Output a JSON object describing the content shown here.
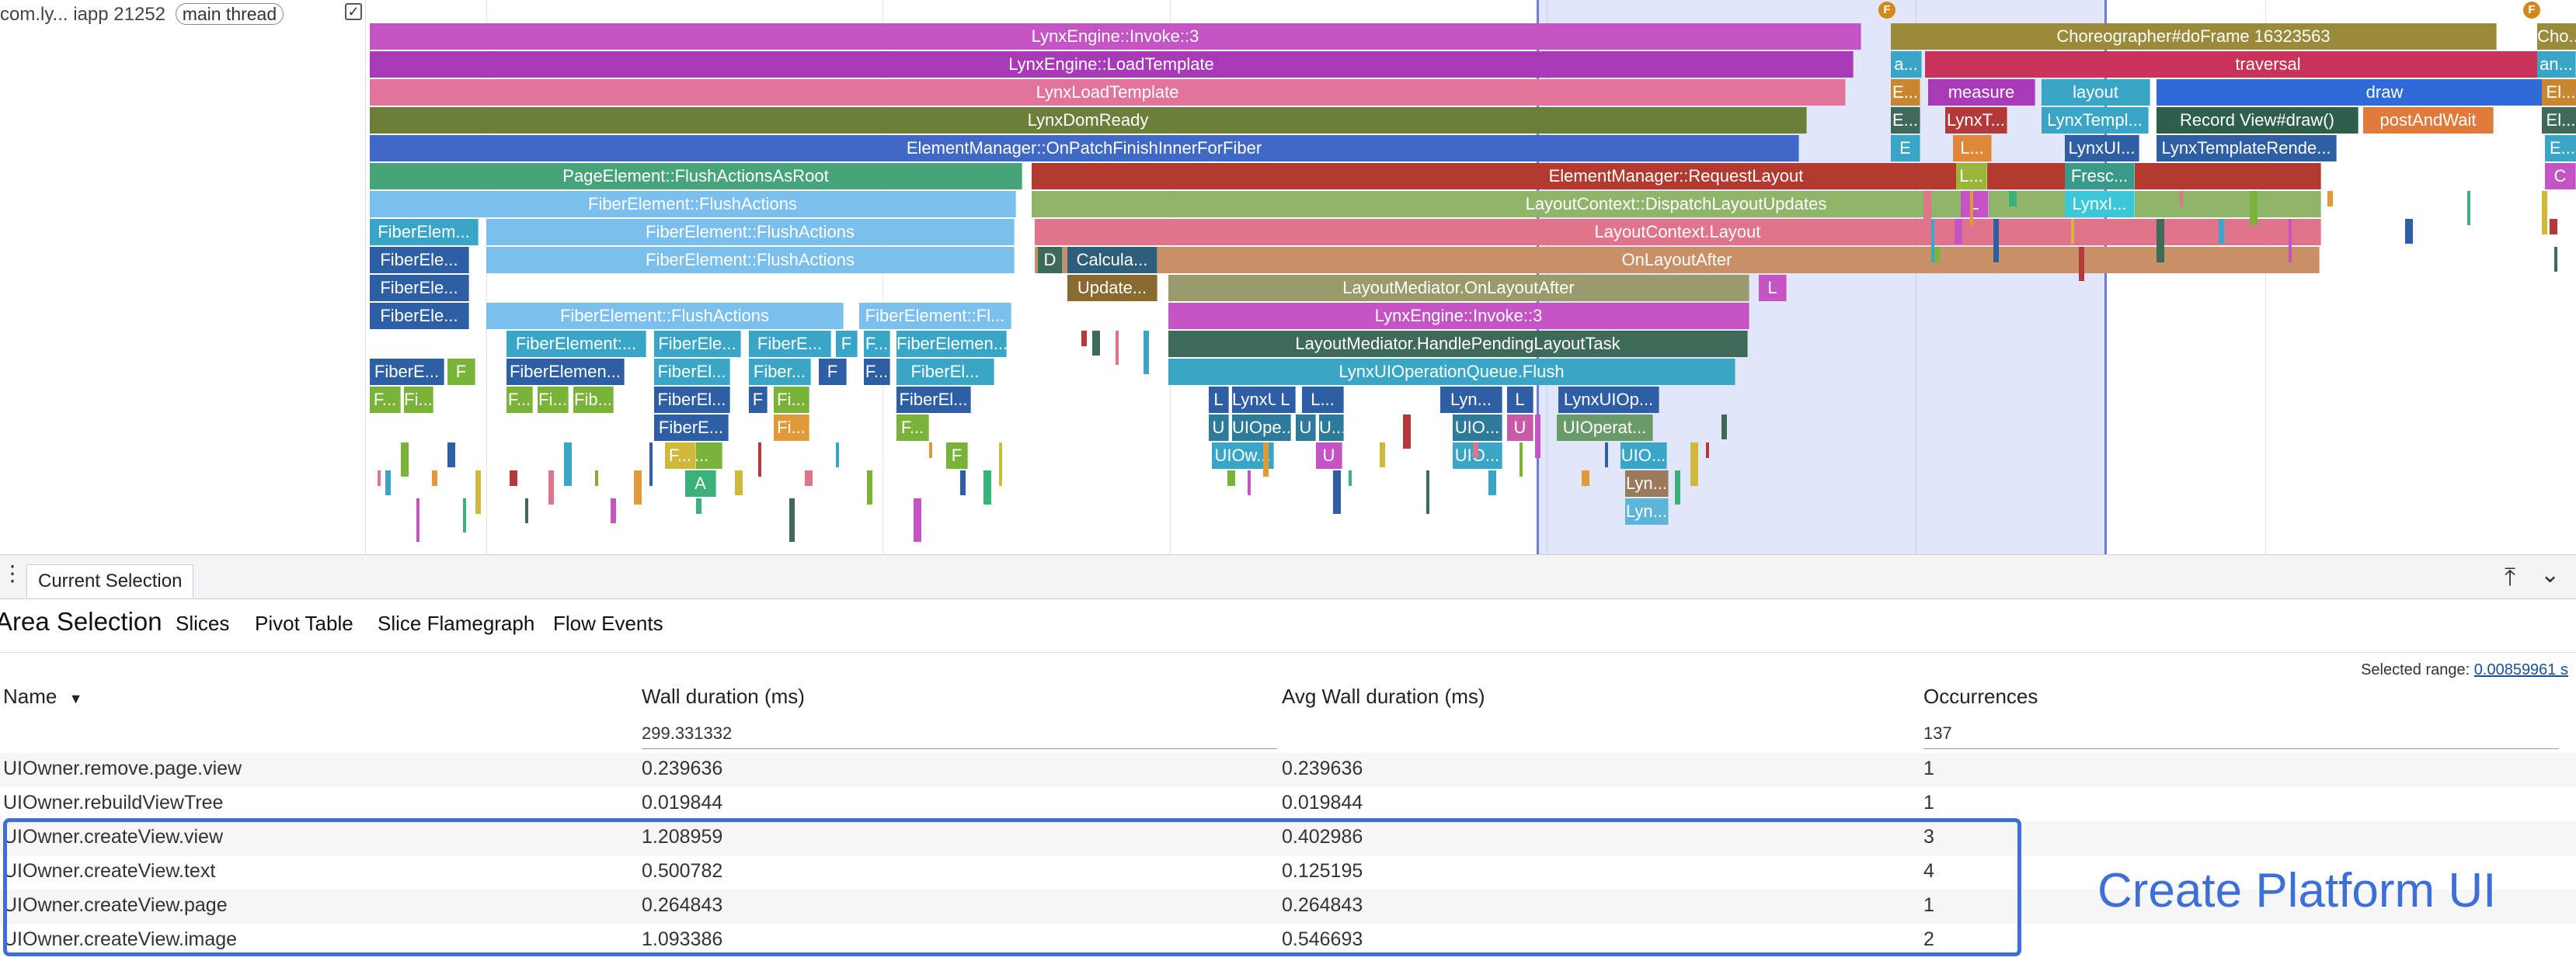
{
  "track": {
    "process_name": "com.ly... iapp 21252",
    "thread_pill": "main thread",
    "pin_icon": "checkbox-icon"
  },
  "flame": {
    "flag_label": "F",
    "slices": [
      {
        "label": "LynxEngine::Invoke::3",
        "color": "#c453c4"
      },
      {
        "label": "LynxEngine::LoadTemplate",
        "color": "#a93ab7"
      },
      {
        "label": "LynxLoadTemplate",
        "color": "#e0749c"
      },
      {
        "label": "LynxDomReady",
        "color": "#6b7f3a"
      },
      {
        "label": "ElementManager::OnPatchFinishInnerForFiber",
        "color": "#3f69c4"
      },
      {
        "label": "PageElement::FlushActionsAsRoot",
        "color": "#47a37a"
      },
      {
        "label": "FiberElement::FlushActions",
        "color": "#7bbfee"
      },
      {
        "label": "FiberElem...",
        "color": "#3aa6c7"
      },
      {
        "label": "FiberElement::FlushActions",
        "color": "#7bbfee"
      },
      {
        "label": "FiberEle...",
        "color": "#2e5fa4"
      },
      {
        "label": "FiberElement::FlushActions",
        "color": "#7bbfee"
      },
      {
        "label": "FiberEle...",
        "color": "#2e5fa4"
      },
      {
        "label": "FiberElement::FlushActions",
        "color": "#7bbfee"
      },
      {
        "label": "FiberElement::Fl...",
        "color": "#7bbfee"
      },
      {
        "label": "FiberEle...",
        "color": "#2e5fa4"
      },
      {
        "label": "FiberElement:...",
        "color": "#3aa6c7"
      },
      {
        "label": "FiberEle...",
        "color": "#3aa6c7"
      },
      {
        "label": "FiberE...",
        "color": "#3aa6c7"
      },
      {
        "label": "F",
        "color": "#3aa6c7"
      },
      {
        "label": "F...",
        "color": "#3aa6c7"
      },
      {
        "label": "FiberElemen...",
        "color": "#3aa6c7"
      },
      {
        "label": "FiberE...",
        "color": "#2e5fa4"
      },
      {
        "label": "F",
        "color": "#7ab33a"
      },
      {
        "label": "FiberElemen...",
        "color": "#2e5fa4"
      },
      {
        "label": "FiberEl...",
        "color": "#3aa6c7"
      },
      {
        "label": "Fiber...",
        "color": "#3aa6c7"
      },
      {
        "label": "F",
        "color": "#2e5fa4"
      },
      {
        "label": "F...",
        "color": "#2e5fa4"
      },
      {
        "label": "FiberEl...",
        "color": "#3aa6c7"
      },
      {
        "label": "F...",
        "color": "#7ab33a"
      },
      {
        "label": "Fi...",
        "color": "#7ab33a"
      },
      {
        "label": "F...",
        "color": "#7ab33a"
      },
      {
        "label": "Fi...",
        "color": "#7ab33a"
      },
      {
        "label": "Fib...",
        "color": "#7ab33a"
      },
      {
        "label": "FiberEl...",
        "color": "#2e5fa4"
      },
      {
        "label": "F",
        "color": "#2e5fa4"
      },
      {
        "label": "Fi...",
        "color": "#7ab33a"
      },
      {
        "label": "FiberEl...",
        "color": "#2e5fa4"
      },
      {
        "label": "F...",
        "color": "#7ab33a"
      },
      {
        "label": "FiberE...",
        "color": "#2e5fa4"
      },
      {
        "label": "Fi...",
        "color": "#e09a3a"
      },
      {
        "label": "F...",
        "color": "#7ab33a"
      },
      {
        "label": "F...",
        "color": "#d0b93a"
      },
      {
        "label": "F",
        "color": "#7ab33a"
      },
      {
        "label": "A",
        "color": "#3ab17a"
      },
      {
        "label": "ElementManager::RequestLayout",
        "color": "#b33a2e"
      },
      {
        "label": "LayoutContext::DispatchLayoutUpdates",
        "color": "#8fb56a"
      },
      {
        "label": "LayoutContext.Layout",
        "color": "#e0748a"
      },
      {
        "label": "OnLayoutAfter",
        "color": "#c89066"
      },
      {
        "label": "LayoutMediator.OnLayoutAfter",
        "color": "#9a9a6a"
      },
      {
        "label": "LynxEngine::Invoke::3",
        "color": "#c453c4"
      },
      {
        "label": "LayoutMediator.HandlePendingLayoutTask",
        "color": "#3f6a5a"
      },
      {
        "label": "LynxUIOperationQueue.Flush",
        "color": "#3aa6c7"
      },
      {
        "label": "D",
        "color": "#3f6a5a"
      },
      {
        "label": "Calcula...",
        "color": "#2e5f7a"
      },
      {
        "label": "Update...",
        "color": "#8a6a2e"
      },
      {
        "label": "L",
        "color": "#2e5fa4"
      },
      {
        "label": "LynxU...",
        "color": "#2e5fa4"
      },
      {
        "label": "L",
        "color": "#2e5fa4"
      },
      {
        "label": "L...",
        "color": "#2e5fa4"
      },
      {
        "label": "Lyn...",
        "color": "#2e5fa4"
      },
      {
        "label": "L",
        "color": "#2e5fa4"
      },
      {
        "label": "LynxUIOp...",
        "color": "#2e5fa4"
      },
      {
        "label": "U",
        "color": "#2e7a9a"
      },
      {
        "label": "UIOpe...",
        "color": "#2e7a9a"
      },
      {
        "label": "U",
        "color": "#2e7a9a"
      },
      {
        "label": "U...",
        "color": "#2e7a9a"
      },
      {
        "label": "UIO...",
        "color": "#2e7a9a"
      },
      {
        "label": "U",
        "color": "#c85aa8"
      },
      {
        "label": "UIOperat...",
        "color": "#6a9a6a"
      },
      {
        "label": "UIOw...",
        "color": "#3aa6c7"
      },
      {
        "label": "U",
        "color": "#c453c4"
      },
      {
        "label": "UIO...",
        "color": "#3aa6c7"
      },
      {
        "label": "UIO...",
        "color": "#3aa6c7"
      },
      {
        "label": "Lyn...",
        "color": "#9a7a5a"
      },
      {
        "label": "Lyn...",
        "color": "#5ab5d8"
      },
      {
        "label": "L",
        "color": "#c453c4"
      },
      {
        "label": "Choreographer#doFrame 16323563",
        "color": "#9a8a3a"
      },
      {
        "label": "a...",
        "color": "#3aa6c7"
      },
      {
        "label": "traversal",
        "color": "#c8335a"
      },
      {
        "label": "E...",
        "color": "#c8862e"
      },
      {
        "label": "measure",
        "color": "#a93ab7"
      },
      {
        "label": "layout",
        "color": "#3aa6c7"
      },
      {
        "label": "draw",
        "color": "#2e6ad8"
      },
      {
        "label": "E...",
        "color": "#3f6a5a"
      },
      {
        "label": "LynxT...",
        "color": "#b33a3a"
      },
      {
        "label": "LynxTempl...",
        "color": "#3aa6c7"
      },
      {
        "label": "Record View#draw()",
        "color": "#2e5f4a"
      },
      {
        "label": "postAndWait",
        "color": "#e07a3a"
      },
      {
        "label": "E",
        "color": "#3aa6c7"
      },
      {
        "label": "L...",
        "color": "#e0883a"
      },
      {
        "label": "LynxUI...",
        "color": "#2e5fa4"
      },
      {
        "label": "LynxTemplateRende...",
        "color": "#2e5fa4"
      },
      {
        "label": "L...",
        "color": "#9ab53a"
      },
      {
        "label": "Fresc...",
        "color": "#3a9a8a"
      },
      {
        "label": "L",
        "color": "#c453c4"
      },
      {
        "label": "LynxI...",
        "color": "#3ac7d8"
      },
      {
        "label": "Cho...",
        "color": "#9a8a3a"
      },
      {
        "label": "an...",
        "color": "#3aa6c7"
      },
      {
        "label": "El...",
        "color": "#c8862e"
      },
      {
        "label": "El...",
        "color": "#3f6a5a"
      },
      {
        "label": "E...",
        "color": "#3aa6c7"
      },
      {
        "label": "C",
        "color": "#c453c4"
      }
    ]
  },
  "panel": {
    "tab_label": "Current Selection",
    "area_title": "Area Selection",
    "subtabs": [
      "Slices",
      "Pivot Table",
      "Slice Flamegraph",
      "Flow Events"
    ],
    "selected_range_label": "Selected range:",
    "selected_range_value": "0.00859961 s",
    "columns": {
      "name": "Name",
      "wall": "Wall duration (ms)",
      "avg": "Avg Wall duration (ms)",
      "occ": "Occurrences"
    },
    "totals": {
      "wall": "299.331332",
      "occ": "137"
    },
    "rows": [
      {
        "name": "UIOwner.remove.page.view",
        "wall": "0.239636",
        "avg": "0.239636",
        "occ": "1"
      },
      {
        "name": "UIOwner.rebuildViewTree",
        "wall": "0.019844",
        "avg": "0.019844",
        "occ": "1"
      },
      {
        "name": "UIOwner.createView.view",
        "wall": "1.208959",
        "avg": "0.402986",
        "occ": "3"
      },
      {
        "name": "UIOwner.createView.text",
        "wall": "0.500782",
        "avg": "0.125195",
        "occ": "4"
      },
      {
        "name": "UIOwner.createView.page",
        "wall": "0.264843",
        "avg": "0.264843",
        "occ": "1"
      },
      {
        "name": "UIOwner.createView.image",
        "wall": "1.093386",
        "avg": "0.546693",
        "occ": "2"
      }
    ],
    "annotation": "Create Platform UI"
  }
}
